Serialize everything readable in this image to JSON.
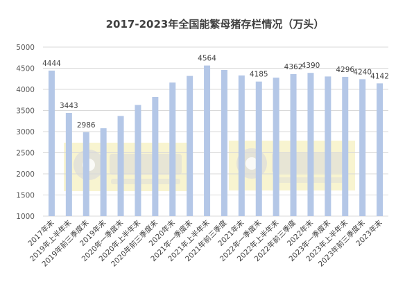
{
  "chart_data": {
    "type": "bar",
    "title": "2017-2023年全国能繁母猪存栏情况（万头）",
    "xlabel": "",
    "ylabel": "",
    "ylim": [
      1000,
      5000
    ],
    "yticks": [
      1000,
      1500,
      2000,
      2500,
      3000,
      3500,
      4000,
      4500,
      5000
    ],
    "grid": true,
    "bar_color": "#b4c7e7",
    "categories": [
      "2017年末",
      "2019年上半年末",
      "2019年前三季度末",
      "2019年末",
      "2020年一季度末",
      "2020年上半年末",
      "2020年前三季度末",
      "2020年末",
      "2021年一季度末",
      "2021年上半年末",
      "2021年前三季度",
      "2021年末",
      "2022年一季度末",
      "2022年上半年末",
      "2022年前三季度",
      "2022年末",
      "2023年一季度末",
      "2023年上半年末",
      "2023年前三季度末",
      "2023年末"
    ],
    "values": [
      4444,
      3443,
      2986,
      3080,
      3370,
      3630,
      3820,
      4161,
      4318,
      4564,
      4459,
      4329,
      4185,
      4277,
      4362,
      4390,
      4305,
      4296,
      4240,
      4142
    ],
    "labels": [
      "4444",
      "3443",
      "2986",
      "",
      "",
      "",
      "",
      "",
      "",
      "4564",
      "",
      "",
      "4185",
      "",
      "4362",
      "4390",
      "",
      "4296",
      "4240",
      "4142"
    ]
  }
}
